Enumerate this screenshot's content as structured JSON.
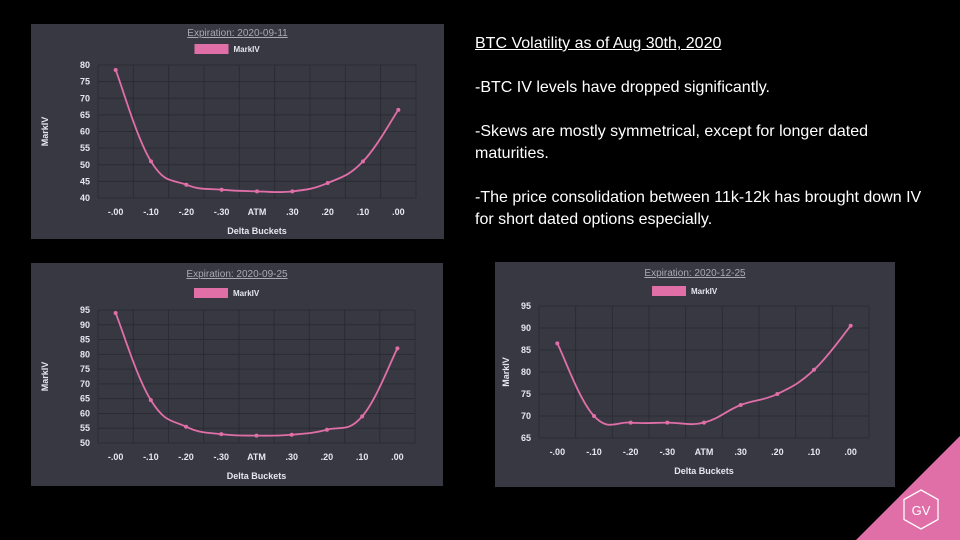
{
  "notes": {
    "title": "BTC Volatility as of Aug 30th, 2020",
    "points": [
      "-BTC IV levels have dropped significantly.",
      "-Skews are mostly symmetrical, except for longer dated maturities.",
      "-The price consolidation between 11k-12k has brought down IV for short dated options especially."
    ]
  },
  "logo": {
    "text": "GV",
    "color": "#e06fa8"
  },
  "chart_data": [
    {
      "type": "line",
      "title": "Expiration: 2020-09-11",
      "legend": "MarkIV",
      "legend_position": "top-center",
      "color": "#e06fa8",
      "xlabel": "Delta Buckets",
      "ylabel": "MarkIV",
      "categories": [
        "-.00",
        "-.10",
        "-.20",
        "-.30",
        "ATM",
        ".30",
        ".20",
        ".10",
        ".00"
      ],
      "values": [
        78.5,
        51,
        44,
        42.5,
        42,
        42,
        44.5,
        51,
        66.5
      ],
      "yticks": [
        40,
        45,
        50,
        55,
        60,
        65,
        70,
        75,
        80
      ],
      "ylim": [
        40,
        80
      ],
      "grid": true
    },
    {
      "type": "line",
      "title": "Expiration: 2020-09-25",
      "legend": "MarkIV",
      "legend_position": "top-center",
      "color": "#e06fa8",
      "xlabel": "Delta Buckets",
      "ylabel": "MarkIV",
      "categories": [
        "-.00",
        "-.10",
        "-.20",
        "-.30",
        "ATM",
        ".30",
        ".20",
        ".10",
        ".00"
      ],
      "values": [
        94,
        64.5,
        55.5,
        53,
        52.5,
        52.8,
        54.5,
        59,
        82
      ],
      "yticks": [
        50,
        55,
        60,
        65,
        70,
        75,
        80,
        85,
        90,
        95
      ],
      "ylim": [
        50,
        95
      ],
      "grid": true
    },
    {
      "type": "line",
      "title": "Expiration: 2020-12-25",
      "legend": "MarkIV",
      "legend_position": "top-center",
      "color": "#e06fa8",
      "xlabel": "Delta Buckets",
      "ylabel": "MarkIV",
      "categories": [
        "-.00",
        "-.10",
        "-.20",
        "-.30",
        "ATM",
        ".30",
        ".20",
        ".10",
        ".00"
      ],
      "values": [
        86.5,
        70,
        68.5,
        68.5,
        68.5,
        72.5,
        75,
        80.5,
        90.5
      ],
      "yticks": [
        65,
        70,
        75,
        80,
        85,
        90,
        95
      ],
      "ylim": [
        65,
        95
      ],
      "grid": true
    }
  ]
}
